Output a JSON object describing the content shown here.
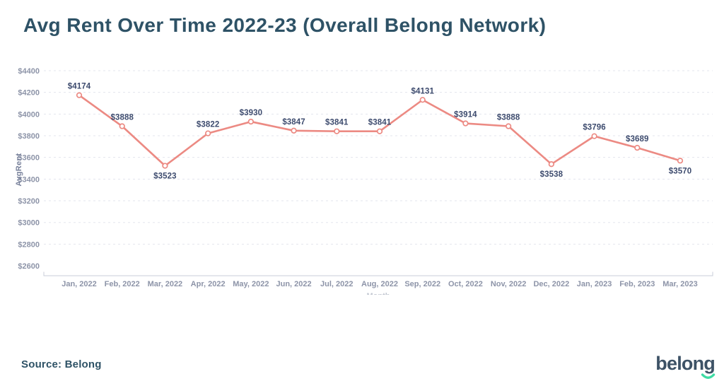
{
  "page": {
    "title": "Avg Rent Over Time 2022-23 (Overall Belong Network)",
    "source": "Source: Belong",
    "logo_text": "belong"
  },
  "colors": {
    "title": "#2e5266",
    "point_label": "#3d4b6e",
    "axis_text": "#8d94a8",
    "grid": "#e3e5ed",
    "axis_line": "#c9cdd8",
    "line": "#ec8a83",
    "marker_fill": "#ffffff",
    "logo_text": "#3d5266",
    "logo_smile": "#3edca4",
    "background": "#ffffff"
  },
  "chart_data": {
    "type": "line",
    "title": "Avg Rent Over Time 2022-23 (Overall Belong Network)",
    "xlabel": "Month",
    "ylabel": "AvgRent",
    "categories": [
      "Jan, 2022",
      "Feb, 2022",
      "Mar, 2022",
      "Apr, 2022",
      "May, 2022",
      "Jun, 2022",
      "Jul, 2022",
      "Aug, 2022",
      "Sep, 2022",
      "Oct, 2022",
      "Nov, 2022",
      "Dec, 2022",
      "Jan, 2023",
      "Feb, 2023",
      "Mar, 2023"
    ],
    "values": [
      4174,
      3888,
      3523,
      3822,
      3930,
      3847,
      3841,
      3841,
      4131,
      3914,
      3888,
      3538,
      3796,
      3689,
      3570
    ],
    "point_labels": [
      "$4174",
      "$3888",
      "$3523",
      "$3822",
      "$3930",
      "$3847",
      "$3841",
      "$3841",
      "$4131",
      "$3914",
      "$3888",
      "$3538",
      "$3796",
      "$3689",
      "$3570"
    ],
    "below_label_indices": [
      2,
      11,
      14
    ],
    "yticks": [
      2600,
      2800,
      3000,
      3200,
      3400,
      3600,
      3800,
      4000,
      4200,
      4400
    ],
    "ytick_labels": [
      "$2600",
      "$2800",
      "$3000",
      "$3200",
      "$3400",
      "$3600",
      "$3800",
      "$4000",
      "$4200",
      "$4400"
    ],
    "ylim": [
      2600,
      4400
    ],
    "grid": "horizontal-dashed",
    "legend": "none",
    "series_name": "AvgRent",
    "marker": "open-circle"
  }
}
